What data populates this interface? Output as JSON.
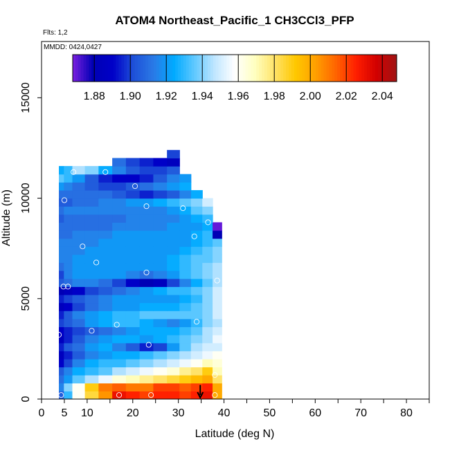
{
  "chart_data": {
    "type": "heatmap",
    "title": "ATOM4 Northeast_Pacific_1 CH3CCl3_PFP",
    "flights_note": "Flts: 1,2",
    "date_note": "MMDD: 0424,0427",
    "xlabel": "Latitude (deg N)",
    "ylabel": "Altitude (m)",
    "xlim": [
      0,
      85
    ],
    "ylim": [
      0,
      17800
    ],
    "x_ticks": [
      0,
      5,
      10,
      20,
      30,
      40,
      50,
      60,
      70,
      80
    ],
    "x_minor_ticks": [
      0,
      5,
      10,
      15,
      20,
      25,
      30,
      35,
      40,
      45,
      50,
      55,
      60,
      65,
      70,
      75,
      80,
      85
    ],
    "y_ticks": [
      0,
      5000,
      10000,
      15000
    ],
    "colorbar": {
      "min": 1.868,
      "max": 2.048,
      "ticks": [
        1.88,
        1.9,
        1.92,
        1.94,
        1.96,
        1.98,
        2.0,
        2.02,
        2.04
      ],
      "tick_labels": [
        "1.88",
        "1.90",
        "1.92",
        "1.94",
        "1.96",
        "1.98",
        "2.00",
        "2.02",
        "2.04"
      ],
      "colors": [
        "#7a1fe0",
        "#0000b4",
        "#0000c8",
        "#1e50d8",
        "#2a7ae6",
        "#00aaff",
        "#5ec8ff",
        "#bfe6ff",
        "#ffffff",
        "#ffffc0",
        "#ffe266",
        "#ffc800",
        "#ff9f00",
        "#ff6400",
        "#ff1e00",
        "#d20000",
        "#a01414"
      ]
    },
    "profile_bottom_color": "#8a2be2",
    "profile_latitudes": [
      4.3,
      5.5,
      8,
      11,
      14,
      17,
      20,
      23,
      26,
      29,
      31.5,
      34,
      36.5,
      38.5
    ],
    "profile_altitudes": [
      0,
      400,
      800,
      1200,
      1600,
      2000,
      2400,
      2800,
      3200,
      3600,
      4000,
      4400,
      4800,
      5200,
      5600,
      6000,
      6400,
      6800,
      7200,
      7600,
      8000,
      8400,
      8800,
      9200,
      9600,
      10000,
      10400,
      10800,
      11200,
      11600,
      12000
    ],
    "profile_values": [
      [
        1.905,
        1.93,
        1.96,
        1.985,
        2.005,
        2.03,
        2.025,
        2.02,
        2.025,
        2.025,
        2.02,
        2.025,
        2.03,
        2.0
      ],
      [
        1.915,
        1.94,
        1.96,
        1.99,
        2.01,
        2.015,
        2.01,
        2.01,
        2.02,
        2.02,
        2.015,
        2.02,
        2.025,
        2.0
      ],
      [
        1.91,
        1.92,
        1.935,
        1.945,
        1.955,
        1.965,
        1.97,
        1.975,
        1.98,
        1.985,
        1.99,
        1.995,
        2.0,
        1.98
      ],
      [
        1.905,
        1.915,
        1.925,
        1.93,
        1.935,
        1.945,
        1.95,
        1.955,
        1.96,
        1.965,
        1.975,
        1.98,
        1.99,
        1.97
      ],
      [
        1.89,
        1.9,
        1.915,
        1.925,
        1.93,
        1.93,
        1.935,
        1.94,
        1.945,
        1.95,
        1.955,
        1.96,
        1.97,
        1.965
      ],
      [
        1.885,
        1.895,
        1.905,
        1.915,
        1.92,
        1.925,
        1.925,
        1.93,
        1.935,
        1.94,
        1.945,
        1.95,
        1.955,
        1.96
      ],
      [
        1.895,
        1.905,
        1.91,
        1.92,
        1.925,
        1.915,
        1.905,
        1.895,
        1.9,
        1.92,
        1.935,
        1.945,
        1.95,
        1.95
      ],
      [
        1.885,
        1.895,
        1.905,
        1.915,
        1.92,
        1.925,
        1.925,
        1.92,
        1.925,
        1.93,
        1.935,
        1.94,
        1.945,
        1.955
      ],
      [
        1.89,
        1.895,
        1.9,
        1.905,
        1.91,
        1.915,
        1.92,
        1.925,
        1.925,
        1.925,
        1.93,
        1.935,
        1.945,
        1.95
      ],
      [
        1.9,
        1.905,
        1.91,
        1.92,
        1.925,
        1.93,
        1.93,
        1.925,
        1.92,
        1.915,
        1.92,
        1.93,
        1.94,
        1.945
      ],
      [
        1.895,
        1.905,
        1.915,
        1.92,
        1.925,
        1.93,
        1.93,
        1.935,
        1.935,
        1.935,
        1.935,
        1.935,
        1.94,
        1.95
      ],
      [
        1.885,
        1.89,
        1.9,
        1.91,
        1.915,
        1.92,
        1.92,
        1.925,
        1.925,
        1.925,
        1.93,
        1.935,
        1.94,
        1.95
      ],
      [
        1.895,
        1.9,
        1.905,
        1.91,
        1.915,
        1.92,
        1.92,
        1.92,
        1.92,
        1.92,
        1.925,
        1.93,
        1.94,
        1.95
      ],
      [
        1.88,
        1.885,
        1.89,
        1.9,
        1.905,
        1.91,
        1.915,
        1.92,
        1.925,
        1.93,
        1.93,
        1.935,
        1.94,
        1.95
      ],
      [
        1.905,
        1.91,
        1.915,
        1.915,
        1.91,
        1.9,
        1.89,
        1.88,
        1.885,
        1.9,
        1.915,
        1.925,
        1.935,
        1.945
      ],
      [
        1.9,
        1.915,
        1.92,
        1.92,
        1.92,
        1.92,
        1.915,
        1.91,
        1.915,
        1.92,
        1.93,
        1.935,
        1.94,
        1.945
      ],
      [
        1.91,
        1.915,
        1.92,
        1.92,
        1.92,
        1.92,
        1.92,
        1.92,
        1.92,
        1.925,
        1.93,
        1.935,
        1.94,
        1.945
      ],
      [
        1.915,
        1.915,
        1.92,
        1.92,
        1.92,
        1.92,
        1.92,
        1.92,
        1.92,
        1.925,
        1.93,
        1.935,
        1.935,
        1.94
      ],
      [
        1.915,
        1.915,
        1.915,
        1.92,
        1.92,
        1.92,
        1.92,
        1.92,
        1.92,
        1.92,
        1.925,
        1.93,
        1.935,
        1.94
      ],
      [
        1.915,
        1.915,
        1.915,
        1.915,
        1.92,
        1.92,
        1.92,
        1.92,
        1.92,
        1.92,
        1.92,
        1.925,
        1.93,
        1.935
      ],
      [
        1.91,
        1.91,
        1.915,
        1.915,
        1.915,
        1.92,
        1.92,
        1.92,
        1.92,
        1.92,
        1.92,
        1.925,
        1.93,
        1.88
      ],
      [
        1.91,
        1.91,
        1.91,
        1.91,
        1.91,
        1.915,
        1.915,
        1.915,
        1.915,
        1.92,
        1.92,
        1.92,
        1.925,
        1.87
      ],
      [
        1.905,
        1.91,
        1.91,
        1.91,
        1.91,
        1.91,
        1.915,
        1.915,
        1.915,
        1.915,
        1.92,
        1.925,
        1.93,
        null
      ],
      [
        1.91,
        1.915,
        1.915,
        1.915,
        1.915,
        1.915,
        1.915,
        1.915,
        1.915,
        1.92,
        1.925,
        1.935,
        1.94,
        null
      ],
      [
        1.905,
        1.905,
        1.91,
        1.91,
        1.915,
        1.915,
        1.92,
        1.92,
        1.925,
        1.93,
        1.935,
        1.94,
        1.95,
        null
      ],
      [
        1.91,
        1.91,
        1.91,
        1.91,
        1.91,
        1.905,
        1.9,
        1.895,
        1.9,
        1.905,
        1.915,
        1.925,
        null,
        null
      ],
      [
        1.92,
        1.915,
        1.91,
        1.905,
        1.9,
        1.9,
        1.905,
        1.91,
        1.915,
        1.92,
        1.925,
        null,
        null,
        null
      ],
      [
        1.935,
        1.93,
        1.92,
        1.905,
        1.895,
        1.89,
        1.89,
        1.895,
        1.905,
        1.915,
        1.92,
        null,
        null,
        null
      ],
      [
        1.925,
        1.93,
        1.945,
        1.94,
        1.925,
        1.915,
        1.905,
        1.9,
        1.9,
        1.905,
        null,
        null,
        null,
        null
      ],
      [
        null,
        null,
        null,
        null,
        null,
        1.91,
        1.9,
        1.895,
        1.89,
        1.885,
        null,
        null,
        null,
        null
      ],
      [
        null,
        null,
        null,
        null,
        null,
        null,
        null,
        null,
        null,
        1.9,
        null,
        null,
        null,
        null
      ]
    ],
    "sample_points": [
      {
        "lat": 4.3,
        "alt": 200
      },
      {
        "lat": 17,
        "alt": 200
      },
      {
        "lat": 24,
        "alt": 200
      },
      {
        "lat": 38,
        "alt": 200
      },
      {
        "lat": 38,
        "alt": 1200
      },
      {
        "lat": 23.5,
        "alt": 2700
      },
      {
        "lat": 3.8,
        "alt": 3200
      },
      {
        "lat": 11,
        "alt": 3400
      },
      {
        "lat": 16.5,
        "alt": 3700
      },
      {
        "lat": 34,
        "alt": 3850
      },
      {
        "lat": 4.8,
        "alt": 5600
      },
      {
        "lat": 5.8,
        "alt": 5600
      },
      {
        "lat": 38.5,
        "alt": 5900
      },
      {
        "lat": 23,
        "alt": 6300
      },
      {
        "lat": 12,
        "alt": 6800
      },
      {
        "lat": 9,
        "alt": 7600
      },
      {
        "lat": 33.5,
        "alt": 8100
      },
      {
        "lat": 36.5,
        "alt": 8800
      },
      {
        "lat": 5,
        "alt": 9900
      },
      {
        "lat": 23,
        "alt": 9600
      },
      {
        "lat": 31,
        "alt": 9500
      },
      {
        "lat": 20.5,
        "alt": 10600
      },
      {
        "lat": 7,
        "alt": 11300
      },
      {
        "lat": 14,
        "alt": 11300
      }
    ],
    "arrow_lat": 34.8,
    "arrow_alt_top": 700
  }
}
